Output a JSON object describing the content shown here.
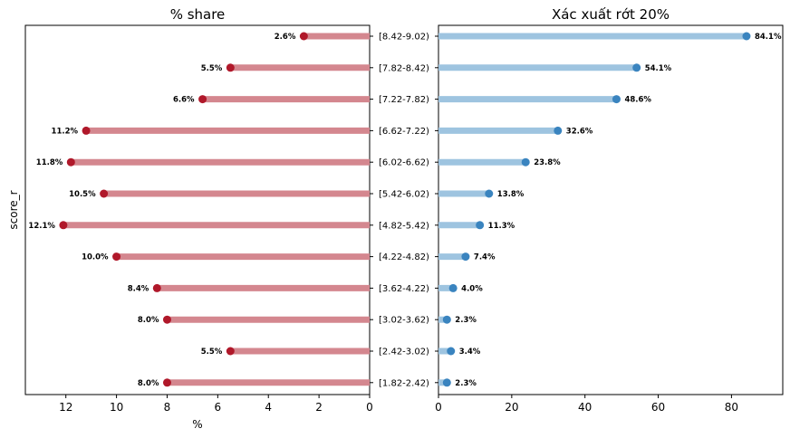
{
  "chart_data": [
    {
      "type": "lollipop-horizontal",
      "title": "% share",
      "xlabel": "%",
      "ylabel": "score_r",
      "x_reversed": true,
      "xlim": [
        13.6,
        0
      ],
      "xticks": [
        12,
        10,
        8,
        6,
        4,
        2,
        0
      ],
      "categories": [
        "[8.42-9.02)",
        "[7.82-8.42)",
        "[7.22-7.82)",
        "[6.62-7.22)",
        "[6.02-6.62)",
        "[5.42-6.02)",
        "[4.82-5.42)",
        "[4.22-4.82)",
        "[3.62-4.22)",
        "[3.02-3.62)",
        "[2.42-3.02)",
        "[1.82-2.42)"
      ],
      "values": [
        2.6,
        5.5,
        6.6,
        11.2,
        11.8,
        10.5,
        12.1,
        10.0,
        8.4,
        8.0,
        5.5,
        8.0
      ],
      "labels": [
        "2.6%",
        "5.5%",
        "6.6%",
        "11.2%",
        "11.8%",
        "10.5%",
        "12.1%",
        "10.0%",
        "8.4%",
        "8.0%",
        "5.5%",
        "8.0%"
      ],
      "colors": {
        "stem": "#d4878f",
        "dot": "#b0182a"
      }
    },
    {
      "type": "lollipop-horizontal",
      "title": "Xác xuất rớt 20%",
      "xlim": [
        0,
        94
      ],
      "xticks": [
        0,
        20,
        40,
        60,
        80
      ],
      "categories": [
        "[8.42-9.02)",
        "[7.82-8.42)",
        "[7.22-7.82)",
        "[6.62-7.22)",
        "[6.02-6.62)",
        "[5.42-6.02)",
        "[4.82-5.42)",
        "[4.22-4.82)",
        "[3.62-4.22)",
        "[3.02-3.62)",
        "[2.42-3.02)",
        "[1.82-2.42)"
      ],
      "values": [
        84.1,
        54.1,
        48.6,
        32.6,
        23.8,
        13.8,
        11.3,
        7.4,
        4.0,
        2.3,
        3.4,
        2.3
      ],
      "labels": [
        "84.1%",
        "54.1%",
        "48.6%",
        "32.6%",
        "23.8%",
        "13.8%",
        "11.3%",
        "7.4%",
        "4.0%",
        "2.3%",
        "3.4%",
        "2.3%"
      ],
      "colors": {
        "stem": "#9ec4e0",
        "dot": "#3a84bf"
      }
    }
  ]
}
